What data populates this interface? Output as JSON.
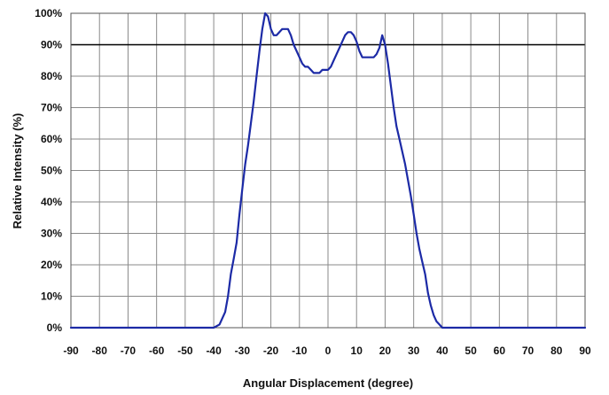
{
  "chart_data": {
    "type": "line",
    "title": "",
    "xlabel": "Angular Displacement (degree)",
    "ylabel": "Relative Intensity (%)",
    "xlim": [
      -90,
      90
    ],
    "ylim": [
      0,
      100
    ],
    "x_ticks": [
      "-90",
      "-80",
      "-70",
      "-60",
      "-50",
      "-40",
      "-30",
      "-20",
      "-10",
      "0",
      "10",
      "20",
      "30",
      "40",
      "50",
      "60",
      "70",
      "80",
      "90"
    ],
    "y_ticks": [
      "0%",
      "10%",
      "20%",
      "30%",
      "40%",
      "50%",
      "60%",
      "70%",
      "80%",
      "90%",
      "100%"
    ],
    "grid": true,
    "reference_line": {
      "y": 90
    },
    "series": [
      {
        "color": "#1c2aa6",
        "x": [
          -90,
          -40,
          -38,
          -36,
          -35,
          -34,
          -33,
          -32,
          -31,
          -30,
          -29,
          -28,
          -27,
          -26,
          -25,
          -24,
          -23,
          -22,
          -21,
          -20,
          -19,
          -18,
          -17,
          -16,
          -15,
          -14,
          -13,
          -12,
          -11,
          -10,
          -9,
          -8,
          -7,
          -6,
          -5,
          -4,
          -3,
          -2,
          -1,
          0,
          1,
          2,
          3,
          4,
          5,
          6,
          7,
          8,
          9,
          10,
          11,
          12,
          13,
          14,
          15,
          16,
          17,
          18,
          19,
          20,
          21,
          22,
          23,
          24,
          25,
          26,
          27,
          28,
          29,
          30,
          31,
          32,
          33,
          34,
          35,
          36,
          37,
          38,
          39,
          40,
          90
        ],
        "y": [
          0,
          0,
          1,
          5,
          10,
          17,
          22,
          27,
          36,
          44,
          52,
          58,
          65,
          72,
          80,
          88,
          95,
          100,
          99,
          95,
          93,
          93,
          94,
          95,
          95,
          95,
          93,
          90,
          88,
          86,
          84,
          83,
          83,
          82,
          81,
          81,
          81,
          82,
          82,
          82,
          83,
          85,
          87,
          89,
          91,
          93,
          94,
          94,
          93,
          91,
          88,
          86,
          86,
          86,
          86,
          86,
          87,
          89,
          93,
          90,
          84,
          77,
          70,
          64,
          60,
          56,
          52,
          47,
          42,
          36,
          30,
          25,
          21,
          17,
          11,
          7,
          4,
          2,
          1,
          0,
          0
        ]
      }
    ]
  }
}
